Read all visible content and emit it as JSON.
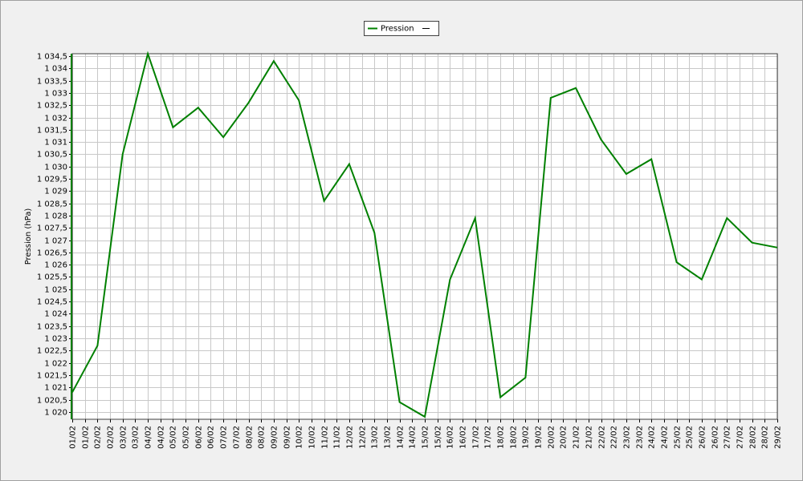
{
  "chart_data": {
    "type": "line",
    "y_label": "Pression (hPa)",
    "legend": "top",
    "grid": true,
    "x": [
      "01/02",
      "02/02",
      "03/02",
      "04/02",
      "05/02",
      "06/02",
      "07/02",
      "08/02",
      "09/02",
      "10/02",
      "11/02",
      "12/02",
      "13/02",
      "14/02",
      "15/02",
      "16/02",
      "17/02",
      "18/02",
      "19/02",
      "20/02",
      "21/02",
      "22/02",
      "23/02",
      "24/02",
      "25/02",
      "26/02",
      "27/02",
      "28/02",
      "29/02"
    ],
    "x_tick_labels": [
      "01/02",
      "01/02",
      "02/02",
      "02/02",
      "03/02",
      "03/02",
      "04/02",
      "04/02",
      "05/02",
      "05/02",
      "06/02",
      "06/02",
      "07/02",
      "07/02",
      "08/02",
      "08/02",
      "09/02",
      "09/02",
      "10/02",
      "10/02",
      "11/02",
      "11/02",
      "12/02",
      "12/02",
      "13/02",
      "13/02",
      "14/02",
      "14/02",
      "15/02",
      "15/02",
      "16/02",
      "16/02",
      "17/02",
      "17/02",
      "18/02",
      "18/02",
      "19/02",
      "19/02",
      "20/02",
      "20/02",
      "21/02",
      "21/02",
      "22/02",
      "22/02",
      "23/02",
      "23/02",
      "24/02",
      "24/02",
      "25/02",
      "25/02",
      "26/02",
      "26/02",
      "27/02",
      "27/02",
      "28/02",
      "28/02",
      "29/02"
    ],
    "series": [
      {
        "name": "Pression",
        "color": "#008000",
        "values": [
          1020.8,
          1022.7,
          1030.5,
          1034.6,
          1031.6,
          1032.4,
          1031.2,
          1032.6,
          1034.3,
          1032.7,
          1028.6,
          1030.1,
          1027.3,
          1020.4,
          1019.8,
          1025.4,
          1027.9,
          1020.6,
          1021.4,
          1032.8,
          1033.2,
          1031.1,
          1029.7,
          1030.3,
          1026.1,
          1025.4,
          1027.9,
          1026.9,
          1026.7
        ]
      }
    ],
    "ylim": [
      1019.7,
      1034.6
    ],
    "yticks": [
      {
        "value": 1020,
        "label": "1 020"
      },
      {
        "value": 1020.5,
        "label": "1 020,5"
      },
      {
        "value": 1021,
        "label": "1 021"
      },
      {
        "value": 1021.5,
        "label": "1 021,5"
      },
      {
        "value": 1022,
        "label": "1 022"
      },
      {
        "value": 1022.5,
        "label": "1 022,5"
      },
      {
        "value": 1023,
        "label": "1 023"
      },
      {
        "value": 1023.5,
        "label": "1 023,5"
      },
      {
        "value": 1024,
        "label": "1 024"
      },
      {
        "value": 1024.5,
        "label": "1 024,5"
      },
      {
        "value": 1025,
        "label": "1 025"
      },
      {
        "value": 1025.5,
        "label": "1 025,5"
      },
      {
        "value": 1026,
        "label": "1 026"
      },
      {
        "value": 1026.5,
        "label": "1 026,5"
      },
      {
        "value": 1027,
        "label": "1 027"
      },
      {
        "value": 1027.5,
        "label": "1 027,5"
      },
      {
        "value": 1028,
        "label": "1 028"
      },
      {
        "value": 1028.5,
        "label": "1 028,5"
      },
      {
        "value": 1029,
        "label": "1 029"
      },
      {
        "value": 1029.5,
        "label": "1 029,5"
      },
      {
        "value": 1030,
        "label": "1 030"
      },
      {
        "value": 1030.5,
        "label": "1 030,5"
      },
      {
        "value": 1031,
        "label": "1 031"
      },
      {
        "value": 1031.5,
        "label": "1 031,5"
      },
      {
        "value": 1032,
        "label": "1 032"
      },
      {
        "value": 1032.5,
        "label": "1 032,5"
      },
      {
        "value": 1033,
        "label": "1 033"
      },
      {
        "value": 1033.5,
        "label": "1 033,5"
      },
      {
        "value": 1034,
        "label": "1 034"
      },
      {
        "value": 1034.5,
        "label": "1 034,5"
      }
    ]
  }
}
